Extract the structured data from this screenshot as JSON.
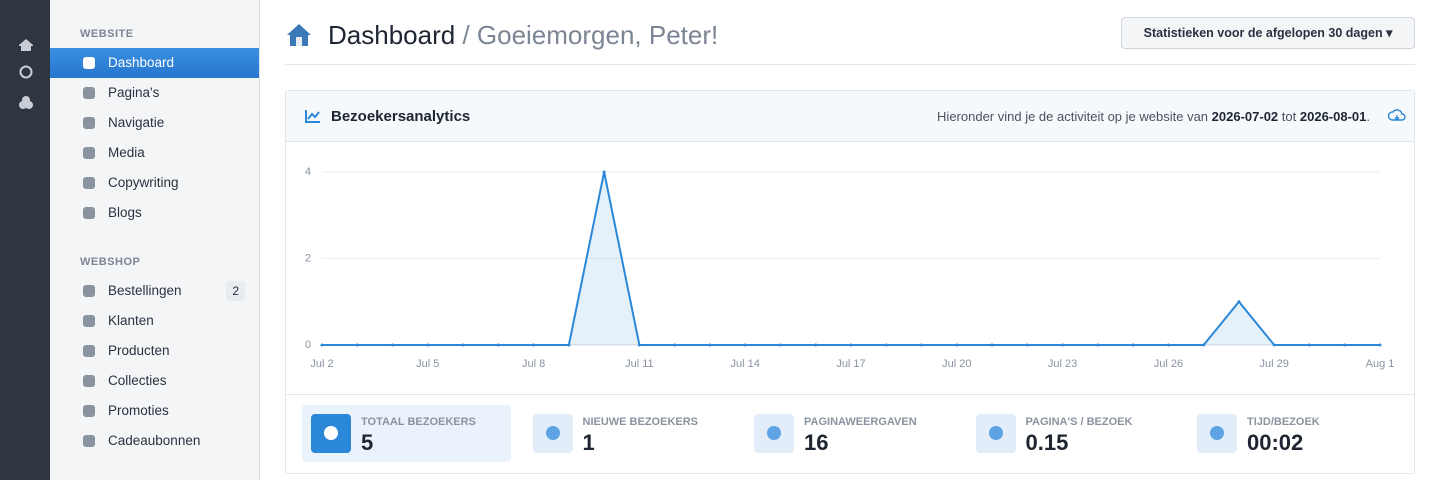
{
  "sidebar": {
    "sections": [
      {
        "title": "WEBSITE",
        "items": [
          {
            "label": "Dashboard"
          },
          {
            "label": "Pagina's"
          },
          {
            "label": "Navigatie"
          },
          {
            "label": "Media"
          },
          {
            "label": "Copywriting"
          },
          {
            "label": "Blogs"
          }
        ]
      },
      {
        "title": "WEBSHOP",
        "items": [
          {
            "label": "Bestellingen",
            "badge": 2
          },
          {
            "label": "Klanten"
          },
          {
            "label": "Producten"
          },
          {
            "label": "Collecties"
          },
          {
            "label": "Promoties"
          },
          {
            "label": "Cadeaubonnen"
          }
        ]
      }
    ]
  },
  "header": {
    "title": "Dashboard",
    "subtitle": "/ Goeiemorgen, Peter!",
    "button": "Statistieken voor de afgelopen 30 dagen"
  },
  "card": {
    "title": "Bezoekersanalytics",
    "description": [
      "Hieronder vind je de activiteit op je website van",
      "2026-07-02",
      "tot",
      "2026-08-01",
      "."
    ]
  },
  "chart_data": {
    "type": "line",
    "categories": [
      "Jul 2",
      null,
      null,
      "Jul 5",
      null,
      null,
      "Jul 8",
      null,
      null,
      "Jul 11",
      null,
      null,
      "Jul 14",
      null,
      null,
      "Jul 17",
      null,
      null,
      "Jul 20",
      null,
      null,
      "Jul 23",
      null,
      null,
      "Jul 26",
      null,
      null,
      "Jul 29",
      null,
      null,
      "Aug 1"
    ],
    "values": [
      0,
      0,
      0,
      0,
      0,
      0,
      0,
      0,
      4,
      0,
      0,
      0,
      0,
      0,
      0,
      0,
      0,
      0,
      0,
      0,
      0,
      0,
      0,
      0,
      0,
      0,
      1,
      0,
      0,
      0,
      0
    ],
    "color": "#2b88d8",
    "ylim": [
      0,
      4
    ],
    "yticks": [
      0,
      2,
      4
    ],
    "grid": true
  },
  "stats": [
    {
      "label": "TOTAAL BEZOEKERS",
      "value": 5
    },
    {
      "label": "NIEUWE BEZOEKERS",
      "value": 1
    },
    {
      "label": "PAGINAWEERGAVEN",
      "value": 16
    },
    {
      "label": "PAGINA'S / BEZOEK",
      "value": 0.15
    },
    {
      "label": "TIJD/BEZOEK",
      "value": "00:02"
    }
  ]
}
